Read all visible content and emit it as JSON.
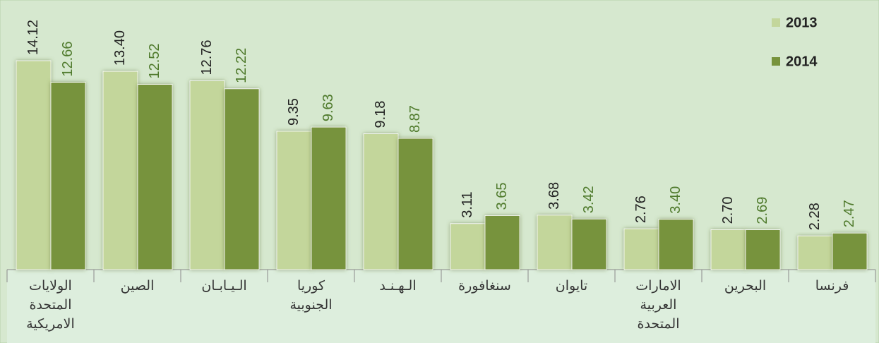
{
  "chart_data": {
    "type": "bar",
    "categories": [
      "الولايات المتحدة الامريكية",
      "الصين",
      "الـيـابـان",
      "كوريا الجنوبية",
      "الـهـنـد",
      "سنغافورة",
      "تايوان",
      "الامارات العربية المتحدة",
      "البحرين",
      "فرنسا"
    ],
    "series": [
      {
        "name": "2013",
        "color": "#c3d69b",
        "label_color": "#222222",
        "values": [
          14.12,
          13.4,
          12.76,
          9.35,
          9.18,
          3.11,
          3.68,
          2.76,
          2.7,
          2.28
        ],
        "value_labels": [
          "14.12",
          "13.40",
          "12.76",
          "9.35",
          "9.18",
          "3.11",
          "3.68",
          "2.76",
          "2.70",
          "2.28"
        ]
      },
      {
        "name": "2014",
        "color": "#77933c",
        "label_color": "#4f7a2c",
        "values": [
          12.66,
          12.52,
          12.22,
          9.63,
          8.87,
          3.65,
          3.42,
          3.4,
          2.69,
          2.47
        ],
        "value_labels": [
          "12.66",
          "12.52",
          "12.22",
          "9.63",
          "8.87",
          "3.65",
          "3.42",
          "3.40",
          "2.69",
          "2.47"
        ]
      }
    ],
    "legend": "upper right"
  }
}
